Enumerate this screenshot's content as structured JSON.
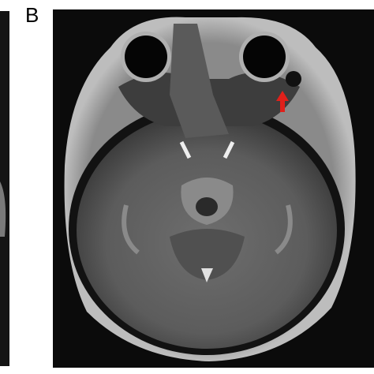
{
  "panel_label": "B"
}
